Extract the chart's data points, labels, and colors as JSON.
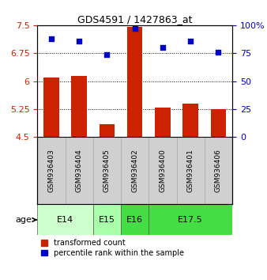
{
  "title": "GDS4591 / 1427863_at",
  "samples": [
    "GSM936403",
    "GSM936404",
    "GSM936405",
    "GSM936402",
    "GSM936400",
    "GSM936401",
    "GSM936406"
  ],
  "bar_values": [
    6.1,
    6.15,
    4.85,
    7.45,
    5.3,
    5.4,
    5.25
  ],
  "scatter_values": [
    88,
    86,
    74,
    97,
    80,
    86,
    76
  ],
  "bar_color": "#cc2200",
  "scatter_color": "#0000cc",
  "ylim_left": [
    4.5,
    7.5
  ],
  "ylim_right": [
    0,
    100
  ],
  "yticks_left": [
    4.5,
    5.25,
    6.0,
    6.75,
    7.5
  ],
  "yticks_right": [
    0,
    25,
    50,
    75,
    100
  ],
  "ytick_labels_left": [
    "4.5",
    "5.25",
    "6",
    "6.75",
    "7.5"
  ],
  "ytick_labels_right": [
    "0",
    "25",
    "50",
    "75",
    "100%"
  ],
  "hlines": [
    5.25,
    6.0,
    6.75
  ],
  "age_groups": [
    {
      "label": "E14",
      "span": [
        0,
        2
      ],
      "color": "#ccffcc"
    },
    {
      "label": "E15",
      "span": [
        2,
        3
      ],
      "color": "#aaffaa"
    },
    {
      "label": "E16",
      "span": [
        3,
        4
      ],
      "color": "#44dd44"
    },
    {
      "label": "E17.5",
      "span": [
        4,
        7
      ],
      "color": "#44dd44"
    }
  ],
  "bar_width": 0.55,
  "gray_color": "#d0d0d0",
  "white_color": "#ffffff",
  "legend_red_label": "transformed count",
  "legend_blue_label": "percentile rank within the sample"
}
